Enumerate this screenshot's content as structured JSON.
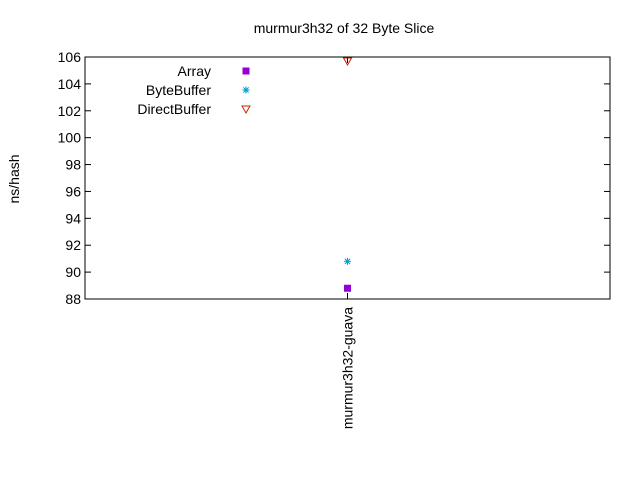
{
  "chart_data": {
    "type": "scatter",
    "title": "murmur3h32 of 32 Byte Slice",
    "xlabel": "",
    "ylabel": "ns/hash",
    "categories": [
      "murmur3h32-guava"
    ],
    "ylim": [
      88,
      106
    ],
    "yticks": [
      88,
      90,
      92,
      94,
      96,
      98,
      100,
      102,
      104,
      106
    ],
    "grid": false,
    "legend_position": "top-left",
    "series": [
      {
        "name": "Array",
        "marker": "filled-square",
        "color": "#9400d3",
        "values": [
          88.8
        ]
      },
      {
        "name": "ByteBuffer",
        "marker": "asterisk",
        "color": "#009ecf",
        "values": [
          90.8
        ]
      },
      {
        "name": "DirectBuffer",
        "marker": "open-triangle-down",
        "color": "#cc2200",
        "values": [
          105.7
        ]
      }
    ]
  }
}
